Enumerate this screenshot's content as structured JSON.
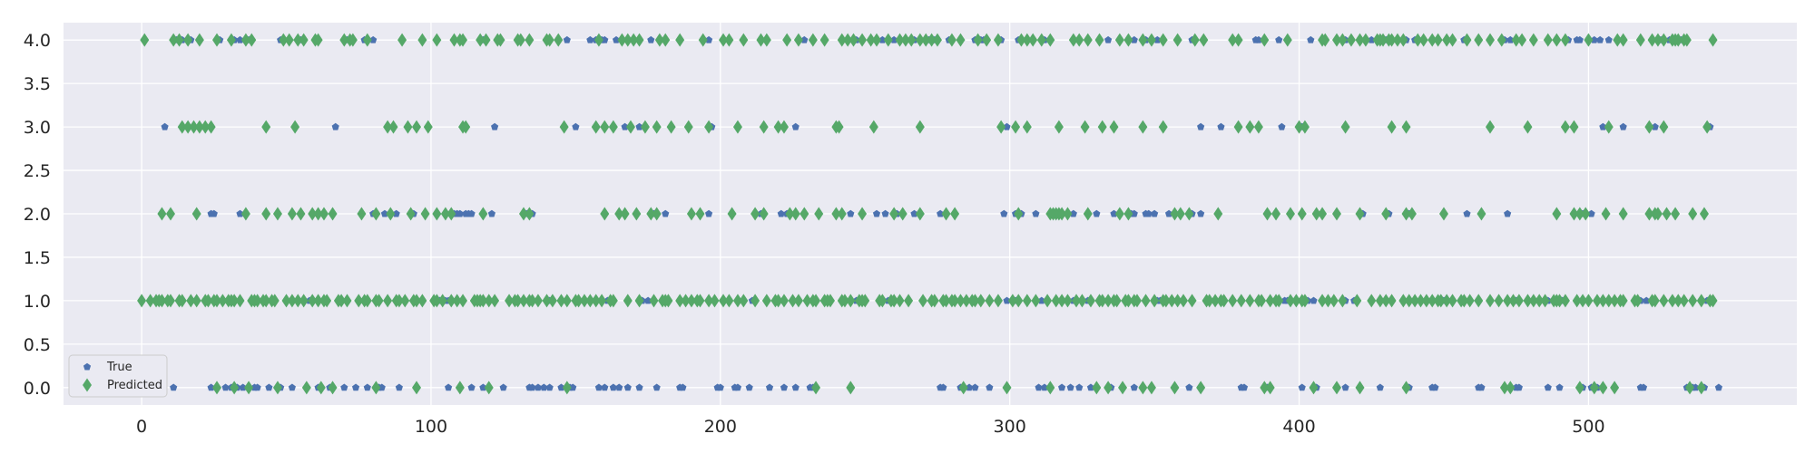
{
  "chart_data": {
    "type": "scatter",
    "title": "",
    "xlabel": "",
    "ylabel": "",
    "xlim": [
      -27,
      572
    ],
    "ylim": [
      -0.2,
      4.2
    ],
    "x_ticks": [
      0,
      100,
      200,
      300,
      400,
      500
    ],
    "y_ticks": [
      0.0,
      0.5,
      1.0,
      1.5,
      2.0,
      2.5,
      3.0,
      3.5,
      4.0
    ],
    "x_tick_labels": [
      "0",
      "100",
      "200",
      "300",
      "400",
      "500"
    ],
    "y_tick_labels": [
      "0.0",
      "0.5",
      "1.0",
      "1.5",
      "2.0",
      "2.5",
      "3.0",
      "3.5",
      "4.0"
    ],
    "grid": true,
    "legend_position": "lower-left",
    "background": "#eaeaf2",
    "n_points": 545,
    "series": [
      {
        "name": "True",
        "marker": "pentagon",
        "color": "#4c72b0",
        "groups": [
          {
            "y": 0,
            "x": [
              11,
              24,
              29,
              31,
              33,
              35,
              39,
              40,
              44,
              48,
              52,
              57,
              61,
              65,
              70,
              74,
              78,
              81,
              82,
              83,
              89,
              95,
              106,
              114,
              118,
              125,
              134,
              135,
              137,
              139,
              141,
              145,
              148,
              149,
              158,
              160,
              163,
              165,
              168,
              172,
              178,
              186,
              187,
              199,
              200,
              205,
              206,
              210,
              217,
              222,
              226,
              231,
              232,
              276,
              277,
              283,
              286,
              288,
              293,
              299,
              310,
              312,
              318,
              321,
              324,
              328,
              335,
              343,
              362,
              366,
              380,
              381,
              389,
              401,
              405,
              406,
              416,
              428,
              438,
              446,
              447,
              462,
              463,
              471,
              475,
              476,
              486,
              490,
              498,
              501,
              503,
              509,
              518,
              519,
              534,
              536,
              537,
              539,
              540,
              545
            ]
          },
          {
            "y": 1,
            "x": [
              0,
              58,
              103,
              105,
              106,
              141,
              161,
              173,
              175,
              211,
              247,
              248,
              258,
              296,
              299,
              302,
              311,
              322,
              327,
              351,
              352,
              354,
              380,
              395,
              396,
              403,
              405,
              416,
              419,
              440,
              442,
              450,
              475,
              486,
              491,
              518,
              520,
              541,
              543
            ]
          },
          {
            "y": 2,
            "x": [
              7,
              24,
              25,
              34,
              80,
              84,
              88,
              94,
              108,
              109,
              110,
              112,
              113,
              114,
              121,
              133,
              135,
              176,
              177,
              181,
              196,
              204,
              214,
              221,
              223,
              229,
              245,
              254,
              257,
              261,
              267,
              276,
              278,
              298,
              302,
              304,
              309,
              320,
              322,
              330,
              336,
              342,
              343,
              347,
              348,
              350,
              355,
              357,
              363,
              366,
              413,
              422,
              431,
              438,
              458,
              472,
              498,
              501
            ]
          },
          {
            "y": 3,
            "x": [
              8,
              14,
              20,
              67,
              122,
              150,
              167,
              172,
              197,
              226,
              240,
              299,
              366,
              373,
              394,
              401,
              466,
              505,
              512,
              523,
              541,
              542
            ]
          },
          {
            "y": 4,
            "x": [
              12,
              14,
              17,
              27,
              32,
              34,
              36,
              37,
              48,
              55,
              56,
              71,
              73,
              77,
              80,
              118,
              147,
              155,
              157,
              159,
              160,
              164,
              172,
              176,
              196,
              214,
              229,
              236,
              247,
              256,
              260,
              264,
              267,
              272,
              274,
              279,
              283,
              288,
              290,
              291,
              297,
              303,
              312,
              324,
              334,
              343,
              347,
              349,
              351,
              363,
              377,
              385,
              386,
              393,
              404,
              416,
              425,
              430,
              431,
              437,
              440,
              451,
              457,
              471,
              473,
              493,
              496,
              497,
              502,
              504,
              507,
              525,
              528,
              532
            ]
          }
        ]
      },
      {
        "name": "Predicted",
        "marker": "thin_diamond",
        "color": "#55a868",
        "groups": [
          {
            "y": 0,
            "x": [
              26,
              32,
              37,
              47,
              57,
              62,
              66,
              81,
              95,
              110,
              120,
              147,
              233,
              245,
              284,
              299,
              314,
              330,
              334,
              339,
              346,
              349,
              357,
              366,
              388,
              390,
              405,
              413,
              421,
              437,
              471,
              473,
              497,
              502,
              505,
              509,
              535,
              539
            ]
          },
          {
            "y": 1,
            "x": [
              0,
              3,
              5,
              6,
              7,
              9,
              10,
              13,
              14,
              17,
              19,
              22,
              23,
              25,
              26,
              28,
              30,
              31,
              32,
              34,
              38,
              39,
              40,
              42,
              43,
              45,
              46,
              50,
              52,
              54,
              56,
              59,
              61,
              63,
              64,
              68,
              69,
              71,
              75,
              77,
              78,
              81,
              82,
              85,
              88,
              89,
              91,
              94,
              95,
              97,
              101,
              102,
              104,
              107,
              109,
              111,
              115,
              116,
              117,
              118,
              120,
              122,
              127,
              129,
              130,
              132,
              134,
              135,
              137,
              140,
              142,
              145,
              147,
              150,
              151,
              153,
              155,
              157,
              159,
              162,
              163,
              168,
              172,
              177,
              180,
              181,
              182,
              186,
              188,
              190,
              192,
              193,
              196,
              198,
              201,
              203,
              206,
              208,
              212,
              216,
              219,
              220,
              222,
              225,
              227,
              230,
              232,
              233,
              236,
              237,
              238,
              242,
              243,
              245,
              248,
              249,
              250,
              255,
              256,
              259,
              260,
              262,
              265,
              270,
              273,
              274,
              277,
              278,
              280,
              281,
              283,
              285,
              287,
              288,
              290,
              293,
              296,
              301,
              303,
              306,
              309,
              313,
              316,
              318,
              320,
              323,
              325,
              328,
              331,
              332,
              334,
              336,
              337,
              340,
              341,
              343,
              344,
              347,
              350,
              353,
              354,
              356,
              358,
              360,
              363,
              368,
              369,
              371,
              373,
              374,
              377,
              380,
              383,
              386,
              387,
              390,
              392,
              393,
              397,
              399,
              401,
              402,
              408,
              410,
              412,
              415,
              420,
              425,
              428,
              430,
              432,
              436,
              438,
              440,
              442,
              444,
              446,
              448,
              449,
              451,
              453,
              456,
              457,
              459,
              462,
              466,
              469,
              472,
              474,
              476,
              479,
              481,
              483,
              485,
              488,
              489,
              490,
              492,
              496,
              498,
              500,
              503,
              505,
              507,
              509,
              511,
              512,
              516,
              517,
              522,
              523,
              526,
              529,
              531,
              533,
              536,
              539,
              542,
              543
            ]
          },
          {
            "y": 2,
            "x": [
              7,
              10,
              19,
              36,
              43,
              47,
              52,
              55,
              59,
              61,
              63,
              66,
              76,
              81,
              86,
              93,
              98,
              102,
              105,
              107,
              118,
              132,
              134,
              160,
              165,
              167,
              171,
              176,
              178,
              190,
              193,
              204,
              212,
              215,
              224,
              226,
              229,
              234,
              240,
              242,
              249,
              260,
              263,
              269,
              278,
              281,
              303,
              314,
              315,
              316,
              317,
              318,
              320,
              327,
              338,
              341,
              357,
              359,
              362,
              372,
              389,
              392,
              397,
              401,
              406,
              408,
              413,
              421,
              430,
              437,
              439,
              450,
              463,
              489,
              495,
              497,
              499,
              506,
              512,
              521,
              523,
              524,
              527,
              530,
              536,
              540
            ]
          },
          {
            "y": 3,
            "x": [
              14,
              16,
              18,
              20,
              22,
              24,
              43,
              53,
              85,
              87,
              92,
              95,
              99,
              111,
              112,
              146,
              157,
              160,
              163,
              169,
              174,
              178,
              183,
              189,
              196,
              206,
              215,
              220,
              222,
              240,
              241,
              253,
              269,
              297,
              302,
              306,
              317,
              326,
              332,
              336,
              346,
              353,
              379,
              383,
              386,
              400,
              402,
              416,
              432,
              437,
              466,
              479,
              492,
              495,
              507,
              521,
              526,
              541
            ]
          },
          {
            "y": 4,
            "x": [
              1,
              11,
              13,
              16,
              20,
              26,
              31,
              36,
              38,
              49,
              51,
              54,
              56,
              60,
              61,
              70,
              72,
              73,
              78,
              90,
              97,
              102,
              108,
              110,
              111,
              117,
              119,
              123,
              124,
              130,
              131,
              134,
              140,
              141,
              144,
              158,
              166,
              168,
              170,
              172,
              179,
              181,
              186,
              194,
              201,
              203,
              208,
              214,
              216,
              223,
              227,
              232,
              236,
              242,
              244,
              246,
              249,
              252,
              254,
              258,
              262,
              264,
              266,
              269,
              271,
              273,
              275,
              280,
              283,
              289,
              292,
              296,
              304,
              306,
              308,
              311,
              314,
              322,
              324,
              327,
              331,
              338,
              341,
              346,
              349,
              353,
              358,
              364,
              367,
              377,
              379,
              388,
              396,
              408,
              409,
              413,
              415,
              418,
              421,
              423,
              427,
              428,
              429,
              431,
              432,
              434,
              436,
              441,
              443,
              446,
              448,
              451,
              453,
              458,
              462,
              466,
              470,
              475,
              477,
              481,
              486,
              489,
              492,
              500,
              510,
              512,
              518,
              522,
              524,
              526,
              529,
              530,
              531,
              533,
              534,
              543
            ]
          }
        ]
      }
    ]
  }
}
